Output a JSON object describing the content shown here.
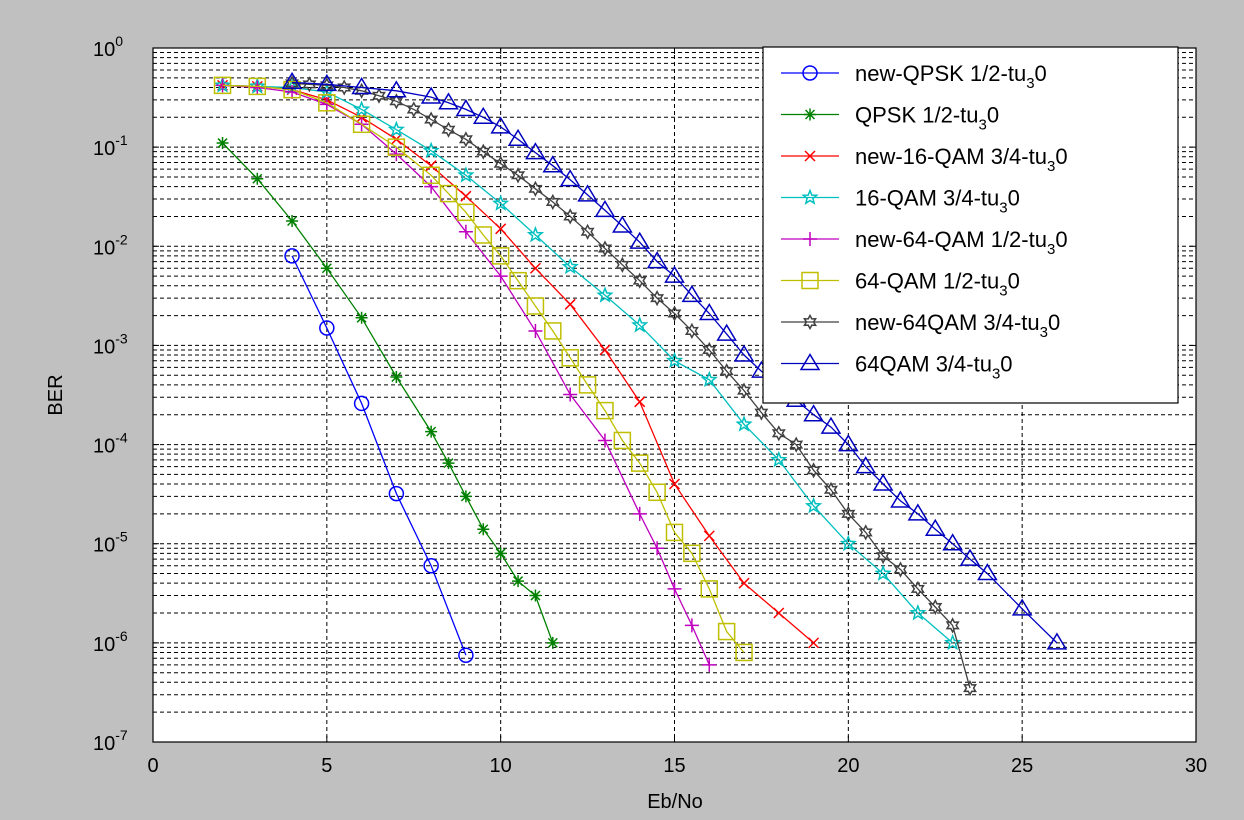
{
  "chart_data": {
    "type": "line",
    "title": "",
    "xlabel": "Eb/No",
    "ylabel": "BER",
    "xlim": [
      0,
      30
    ],
    "ylim": [
      1e-07,
      1
    ],
    "y_scale": "log",
    "grid": true,
    "legend_position": "top-right",
    "x_ticks": [
      "0",
      "5",
      "10",
      "15",
      "20",
      "25",
      "30"
    ],
    "y_ticks": [
      {
        "base": "10",
        "exp": "0"
      },
      {
        "base": "10",
        "exp": "-1"
      },
      {
        "base": "10",
        "exp": "-2"
      },
      {
        "base": "10",
        "exp": "-3"
      },
      {
        "base": "10",
        "exp": "-4"
      },
      {
        "base": "10",
        "exp": "-5"
      },
      {
        "base": "10",
        "exp": "-6"
      },
      {
        "base": "10",
        "exp": "-7"
      }
    ],
    "series": [
      {
        "name": "new-QPSK 1/2-tu30",
        "legend_main": "new-QPSK 1/2-tu",
        "legend_sub": "3",
        "legend_tail": "0",
        "color": "#0000ff",
        "marker": "circle",
        "x": [
          4,
          5,
          6,
          7,
          8,
          9
        ],
        "y": [
          0.008,
          0.0015,
          0.00026,
          3.2e-05,
          6e-06,
          7.5e-07
        ]
      },
      {
        "name": "QPSK 1/2-tu30",
        "legend_main": "QPSK 1/2-tu",
        "legend_sub": "3",
        "legend_tail": "0",
        "color": "#008000",
        "marker": "star",
        "x": [
          2,
          3,
          4,
          5,
          6,
          7,
          8,
          8.5,
          9,
          9.5,
          10,
          10.5,
          11,
          11.5
        ],
        "y": [
          0.11,
          0.048,
          0.018,
          0.006,
          0.0019,
          0.00048,
          0.000135,
          6.5e-05,
          3e-05,
          1.4e-05,
          8e-06,
          4.2e-06,
          3e-06,
          1e-06
        ]
      },
      {
        "name": "new-16-QAM 3/4-tu30",
        "legend_main": "new-16-QAM 3/4-tu",
        "legend_sub": "3",
        "legend_tail": "0",
        "color": "#ff0000",
        "marker": "x",
        "x": [
          2,
          3,
          4,
          5,
          6,
          7,
          8,
          9,
          10,
          11,
          12,
          13,
          14,
          15,
          16,
          17,
          18,
          19
        ],
        "y": [
          0.42,
          0.41,
          0.38,
          0.3,
          0.2,
          0.12,
          0.065,
          0.032,
          0.015,
          0.006,
          0.0026,
          0.0009,
          0.00027,
          4e-05,
          1.2e-05,
          4e-06,
          2e-06,
          1e-06
        ]
      },
      {
        "name": "16-QAM 3/4-tu30",
        "legend_main": "16-QAM 3/4-tu",
        "legend_sub": "3",
        "legend_tail": "0",
        "color": "#00bfbf",
        "marker": "pentagram",
        "x": [
          2,
          3,
          4,
          5,
          6,
          7,
          8,
          9,
          10,
          11,
          12,
          13,
          14,
          15,
          16,
          17,
          18,
          19,
          20,
          21,
          22,
          23
        ],
        "y": [
          0.42,
          0.41,
          0.4,
          0.36,
          0.24,
          0.15,
          0.092,
          0.052,
          0.027,
          0.013,
          0.0062,
          0.0032,
          0.0016,
          0.0007,
          0.00045,
          0.00016,
          7e-05,
          2.4e-05,
          1e-05,
          5e-06,
          2e-06,
          1e-06
        ]
      },
      {
        "name": "new-64-QAM 1/2-tu30",
        "legend_main": "new-64-QAM 1/2-tu",
        "legend_sub": "3",
        "legend_tail": "0",
        "color": "#bf00bf",
        "marker": "plus",
        "x": [
          2,
          3,
          4,
          5,
          6,
          7,
          8,
          9,
          10,
          11,
          12,
          13,
          14,
          14.5,
          15,
          15.5,
          16
        ],
        "y": [
          0.42,
          0.4,
          0.36,
          0.27,
          0.17,
          0.085,
          0.04,
          0.014,
          0.005,
          0.0014,
          0.00032,
          0.00011,
          2e-05,
          9e-06,
          3.5e-06,
          1.5e-06,
          6e-07
        ]
      },
      {
        "name": "64-QAM 1/2-tu30",
        "legend_main": "64-QAM 1/2-tu",
        "legend_sub": "3",
        "legend_tail": "0",
        "color": "#bfbf00",
        "marker": "square",
        "x": [
          2,
          3,
          4,
          5,
          6,
          7,
          8,
          8.5,
          9,
          9.5,
          10,
          10.5,
          11,
          11.5,
          12,
          12.5,
          13,
          13.5,
          14,
          14.5,
          15,
          15.5,
          16,
          16.5,
          17
        ],
        "y": [
          0.42,
          0.41,
          0.38,
          0.28,
          0.17,
          0.1,
          0.052,
          0.034,
          0.022,
          0.013,
          0.008,
          0.0045,
          0.0025,
          0.0014,
          0.00075,
          0.0004,
          0.00022,
          0.00011,
          6.5e-05,
          3.3e-05,
          1.3e-05,
          8e-06,
          3.5e-06,
          1.3e-06,
          8e-07
        ]
      },
      {
        "name": "new-64QAM 3/4-tu30",
        "legend_main": "new-64QAM 3/4-tu",
        "legend_sub": "3",
        "legend_tail": "0",
        "color": "#404040",
        "marker": "hexagram",
        "x": [
          4,
          4.5,
          5,
          5.5,
          6,
          6.5,
          7,
          7.5,
          8,
          8.5,
          9,
          9.5,
          10,
          10.5,
          11,
          11.5,
          12,
          12.5,
          13,
          13.5,
          14,
          14.5,
          15,
          15.5,
          16,
          16.5,
          17,
          17.5,
          18,
          18.5,
          19,
          19.5,
          20,
          20.5,
          21,
          21.5,
          22,
          22.5,
          23,
          23.5
        ],
        "y": [
          0.44,
          0.43,
          0.42,
          0.4,
          0.37,
          0.33,
          0.29,
          0.24,
          0.19,
          0.15,
          0.12,
          0.09,
          0.068,
          0.052,
          0.038,
          0.028,
          0.02,
          0.014,
          0.0095,
          0.0065,
          0.0045,
          0.003,
          0.0021,
          0.0014,
          0.0009,
          0.00055,
          0.00035,
          0.00021,
          0.00013,
          0.0001,
          5.5e-05,
          3.5e-05,
          2e-05,
          1.3e-05,
          7.5e-06,
          5.5e-06,
          3.5e-06,
          2.3e-06,
          1.5e-06,
          3.5e-07
        ]
      },
      {
        "name": "64QAM 3/4-tu30",
        "legend_main": "64QAM 3/4-tu",
        "legend_sub": "3",
        "legend_tail": "0",
        "color": "#0000bf",
        "marker": "triangle",
        "x": [
          4,
          5,
          6,
          7,
          8,
          8.5,
          9,
          9.5,
          10,
          10.5,
          11,
          11.5,
          12,
          12.5,
          13,
          13.5,
          14,
          14.5,
          15,
          15.5,
          16,
          16.5,
          17,
          17.5,
          18,
          18.5,
          19,
          19.5,
          20,
          20.5,
          21,
          21.5,
          22,
          22.5,
          23,
          23.5,
          24,
          25,
          26
        ],
        "y": [
          0.45,
          0.43,
          0.4,
          0.37,
          0.32,
          0.28,
          0.24,
          0.2,
          0.16,
          0.12,
          0.088,
          0.065,
          0.047,
          0.033,
          0.023,
          0.016,
          0.011,
          0.007,
          0.005,
          0.0032,
          0.0021,
          0.0013,
          0.0008,
          0.00055,
          0.0004,
          0.00028,
          0.0002,
          0.00015,
          0.0001,
          6e-05,
          4e-05,
          2.7e-05,
          2e-05,
          1.4e-05,
          1e-05,
          7e-06,
          5e-06,
          2.2e-06,
          1e-06
        ]
      }
    ]
  }
}
